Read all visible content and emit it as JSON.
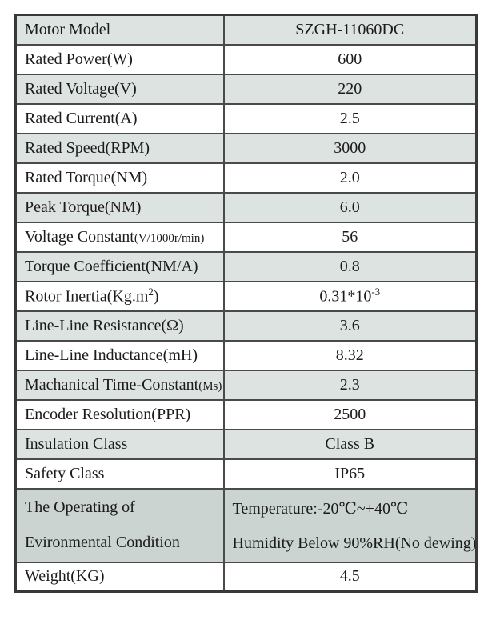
{
  "colors": {
    "page_bg": "#ffffff",
    "shaded_row": "#dce3e0",
    "env_row": "#cbd4d0",
    "border": "#4a4a4a",
    "border_dark": "#383838",
    "text": "#1b1b1b"
  },
  "table": {
    "columns": [
      "parameter",
      "value"
    ],
    "rows": [
      {
        "shaded": true,
        "tall": false,
        "label_lines": [
          [
            {
              "t": "Motor Model"
            }
          ]
        ],
        "value_lines": [
          [
            {
              "t": "SZGH-11060DC"
            }
          ]
        ]
      },
      {
        "shaded": false,
        "tall": false,
        "label_lines": [
          [
            {
              "t": "Rated Power(W)"
            }
          ]
        ],
        "value_lines": [
          [
            {
              "t": "600"
            }
          ]
        ]
      },
      {
        "shaded": true,
        "tall": false,
        "label_lines": [
          [
            {
              "t": "Rated Voltage(V)"
            }
          ]
        ],
        "value_lines": [
          [
            {
              "t": "220"
            }
          ]
        ]
      },
      {
        "shaded": false,
        "tall": false,
        "label_lines": [
          [
            {
              "t": "Rated Current(A)"
            }
          ]
        ],
        "value_lines": [
          [
            {
              "t": "2.5"
            }
          ]
        ]
      },
      {
        "shaded": true,
        "tall": false,
        "label_lines": [
          [
            {
              "t": "Rated Speed(RPM)"
            }
          ]
        ],
        "value_lines": [
          [
            {
              "t": "3000"
            }
          ]
        ]
      },
      {
        "shaded": false,
        "tall": false,
        "label_lines": [
          [
            {
              "t": "Rated Torque(NM)"
            }
          ]
        ],
        "value_lines": [
          [
            {
              "t": "2.0"
            }
          ]
        ]
      },
      {
        "shaded": true,
        "tall": false,
        "label_lines": [
          [
            {
              "t": "Peak Torque(NM)"
            }
          ]
        ],
        "value_lines": [
          [
            {
              "t": "6.0"
            }
          ]
        ]
      },
      {
        "shaded": false,
        "tall": false,
        "label_lines": [
          [
            {
              "t": "Voltage Constant"
            },
            {
              "t": "(V/1000r/min)",
              "s": "small"
            }
          ]
        ],
        "value_lines": [
          [
            {
              "t": "56"
            }
          ]
        ]
      },
      {
        "shaded": true,
        "tall": false,
        "label_lines": [
          [
            {
              "t": "Torque Coefficient(NM/A)"
            }
          ]
        ],
        "value_lines": [
          [
            {
              "t": "0.8"
            }
          ]
        ]
      },
      {
        "shaded": false,
        "tall": false,
        "label_lines": [
          [
            {
              "t": "Rotor Inertia(Kg.m"
            },
            {
              "t": "2",
              "s": "sup"
            },
            {
              "t": ")"
            }
          ]
        ],
        "value_lines": [
          [
            {
              "t": "0.31*10"
            },
            {
              "t": "-3",
              "s": "sup"
            }
          ]
        ]
      },
      {
        "shaded": true,
        "tall": false,
        "label_lines": [
          [
            {
              "t": "Line-Line Resistance(Ω)"
            }
          ]
        ],
        "value_lines": [
          [
            {
              "t": "3.6"
            }
          ]
        ]
      },
      {
        "shaded": false,
        "tall": false,
        "label_lines": [
          [
            {
              "t": "Line-Line Inductance(mH)"
            }
          ]
        ],
        "value_lines": [
          [
            {
              "t": "8.32"
            }
          ]
        ]
      },
      {
        "shaded": true,
        "tall": false,
        "label_lines": [
          [
            {
              "t": "Machanical Time-Constant"
            },
            {
              "t": "(Ms)",
              "s": "small"
            }
          ]
        ],
        "value_lines": [
          [
            {
              "t": "2.3"
            }
          ]
        ]
      },
      {
        "shaded": false,
        "tall": false,
        "label_lines": [
          [
            {
              "t": "Encoder Resolution(PPR)"
            }
          ]
        ],
        "value_lines": [
          [
            {
              "t": "2500"
            }
          ]
        ]
      },
      {
        "shaded": true,
        "tall": false,
        "label_lines": [
          [
            {
              "t": "Insulation Class"
            }
          ]
        ],
        "value_lines": [
          [
            {
              "t": "Class B"
            }
          ]
        ]
      },
      {
        "shaded": false,
        "tall": false,
        "label_lines": [
          [
            {
              "t": "Safety Class"
            }
          ]
        ],
        "value_lines": [
          [
            {
              "t": "IP65"
            }
          ]
        ]
      },
      {
        "shaded": true,
        "tall": true,
        "label_lines": [
          [
            {
              "t": "The Operating of"
            }
          ],
          [
            {
              "t": "Evironmental Condition"
            }
          ]
        ],
        "value_lines": [
          [
            {
              "t": "Temperature:-20℃~+40℃"
            }
          ],
          [
            {
              "t": "Humidity Below 90%RH(No dewing)"
            }
          ]
        ]
      },
      {
        "shaded": false,
        "tall": false,
        "label_lines": [
          [
            {
              "t": "Weight(KG)"
            }
          ]
        ],
        "value_lines": [
          [
            {
              "t": "4.5"
            }
          ]
        ]
      }
    ]
  }
}
